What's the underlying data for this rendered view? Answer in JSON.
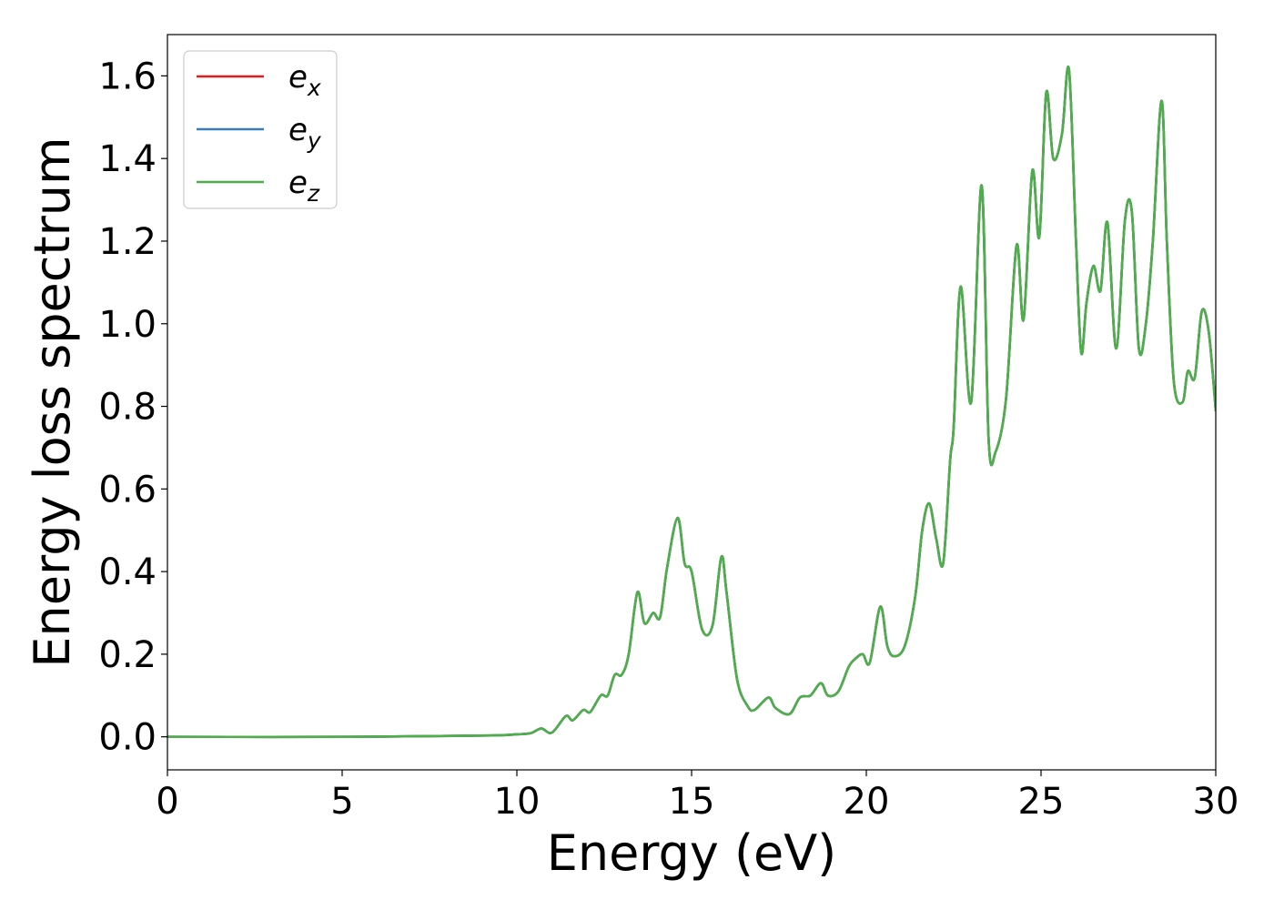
{
  "chart_data": {
    "type": "line",
    "title": "",
    "xlabel": "Energy (eV)",
    "ylabel": "Energy loss spectrum",
    "xlim": [
      0,
      30
    ],
    "ylim": [
      -0.08,
      1.7
    ],
    "xticks": [
      0,
      5,
      10,
      15,
      20,
      25,
      30
    ],
    "xtick_labels": [
      "0",
      "5",
      "10",
      "15",
      "20",
      "25",
      "30"
    ],
    "yticks": [
      0.0,
      0.2,
      0.4,
      0.6,
      0.8,
      1.0,
      1.2,
      1.4,
      1.6
    ],
    "ytick_labels": [
      "0.0",
      "0.2",
      "0.4",
      "0.6",
      "0.8",
      "1.0",
      "1.2",
      "1.4",
      "1.6"
    ],
    "grid": false,
    "legend": {
      "position": "top-left"
    },
    "x": [
      0,
      5,
      9,
      10,
      10.4,
      10.7,
      11.0,
      11.4,
      11.6,
      11.9,
      12.1,
      12.4,
      12.6,
      12.8,
      13.0,
      13.2,
      13.45,
      13.65,
      13.9,
      14.1,
      14.3,
      14.6,
      14.8,
      15.0,
      15.3,
      15.6,
      15.85,
      16.0,
      16.3,
      16.6,
      16.8,
      17.2,
      17.4,
      17.8,
      18.1,
      18.4,
      18.7,
      18.9,
      19.2,
      19.5,
      19.7,
      19.9,
      20.1,
      20.4,
      20.6,
      20.8,
      21.1,
      21.4,
      21.6,
      21.8,
      22.0,
      22.2,
      22.4,
      22.5,
      22.7,
      23.0,
      23.3,
      23.5,
      23.7,
      24.0,
      24.3,
      24.5,
      24.75,
      24.95,
      25.15,
      25.35,
      25.6,
      25.8,
      26.0,
      26.15,
      26.3,
      26.5,
      26.7,
      26.9,
      27.15,
      27.4,
      27.6,
      27.8,
      28.0,
      28.2,
      28.45,
      28.6,
      28.8,
      29.05,
      29.2,
      29.4,
      29.6,
      29.8,
      30
    ],
    "series": [
      {
        "name": "e",
        "sub": "x",
        "color": "#e41a1c",
        "values": [
          0,
          0,
          0.003,
          0.006,
          0.009,
          0.02,
          0.01,
          0.05,
          0.04,
          0.065,
          0.06,
          0.1,
          0.1,
          0.15,
          0.15,
          0.2,
          0.35,
          0.275,
          0.3,
          0.29,
          0.41,
          0.53,
          0.42,
          0.4,
          0.26,
          0.27,
          0.435,
          0.35,
          0.14,
          0.075,
          0.065,
          0.095,
          0.07,
          0.055,
          0.095,
          0.1,
          0.13,
          0.1,
          0.11,
          0.17,
          0.19,
          0.2,
          0.18,
          0.315,
          0.22,
          0.195,
          0.22,
          0.34,
          0.5,
          0.565,
          0.48,
          0.42,
          0.67,
          0.75,
          1.09,
          0.81,
          1.335,
          0.72,
          0.69,
          0.82,
          1.19,
          1.01,
          1.37,
          1.21,
          1.56,
          1.4,
          1.46,
          1.615,
          1.2,
          0.93,
          1.05,
          1.14,
          1.08,
          1.245,
          0.94,
          1.25,
          1.27,
          0.94,
          1.0,
          1.2,
          1.54,
          1.2,
          0.86,
          0.81,
          0.885,
          0.87,
          1.03,
          0.98,
          0.79
        ]
      },
      {
        "name": "e",
        "sub": "y",
        "color": "#377eb8",
        "values": [
          0,
          0,
          0.003,
          0.006,
          0.009,
          0.02,
          0.01,
          0.05,
          0.04,
          0.065,
          0.06,
          0.1,
          0.1,
          0.15,
          0.15,
          0.2,
          0.35,
          0.275,
          0.3,
          0.29,
          0.41,
          0.53,
          0.42,
          0.4,
          0.26,
          0.27,
          0.435,
          0.35,
          0.14,
          0.075,
          0.065,
          0.095,
          0.07,
          0.055,
          0.095,
          0.1,
          0.13,
          0.1,
          0.11,
          0.17,
          0.19,
          0.2,
          0.18,
          0.315,
          0.22,
          0.195,
          0.22,
          0.34,
          0.5,
          0.565,
          0.48,
          0.42,
          0.67,
          0.75,
          1.09,
          0.81,
          1.335,
          0.72,
          0.69,
          0.82,
          1.19,
          1.01,
          1.37,
          1.21,
          1.56,
          1.4,
          1.46,
          1.615,
          1.2,
          0.93,
          1.05,
          1.14,
          1.08,
          1.245,
          0.94,
          1.25,
          1.27,
          0.94,
          1.0,
          1.2,
          1.54,
          1.2,
          0.86,
          0.81,
          0.885,
          0.87,
          1.03,
          0.98,
          0.79
        ]
      },
      {
        "name": "e",
        "sub": "z",
        "color": "#4daf4a",
        "values": [
          0,
          0,
          0.003,
          0.006,
          0.009,
          0.02,
          0.01,
          0.05,
          0.04,
          0.065,
          0.06,
          0.1,
          0.1,
          0.15,
          0.15,
          0.2,
          0.35,
          0.275,
          0.3,
          0.29,
          0.41,
          0.53,
          0.42,
          0.4,
          0.26,
          0.27,
          0.435,
          0.35,
          0.14,
          0.075,
          0.065,
          0.095,
          0.07,
          0.055,
          0.095,
          0.1,
          0.13,
          0.1,
          0.11,
          0.17,
          0.19,
          0.2,
          0.18,
          0.315,
          0.22,
          0.195,
          0.22,
          0.34,
          0.5,
          0.565,
          0.48,
          0.42,
          0.67,
          0.75,
          1.09,
          0.81,
          1.335,
          0.72,
          0.69,
          0.82,
          1.19,
          1.01,
          1.37,
          1.21,
          1.56,
          1.4,
          1.46,
          1.615,
          1.2,
          0.93,
          1.05,
          1.14,
          1.08,
          1.245,
          0.94,
          1.25,
          1.27,
          0.94,
          1.0,
          1.2,
          1.54,
          1.2,
          0.86,
          0.81,
          0.885,
          0.87,
          1.03,
          0.98,
          0.79
        ]
      }
    ]
  }
}
